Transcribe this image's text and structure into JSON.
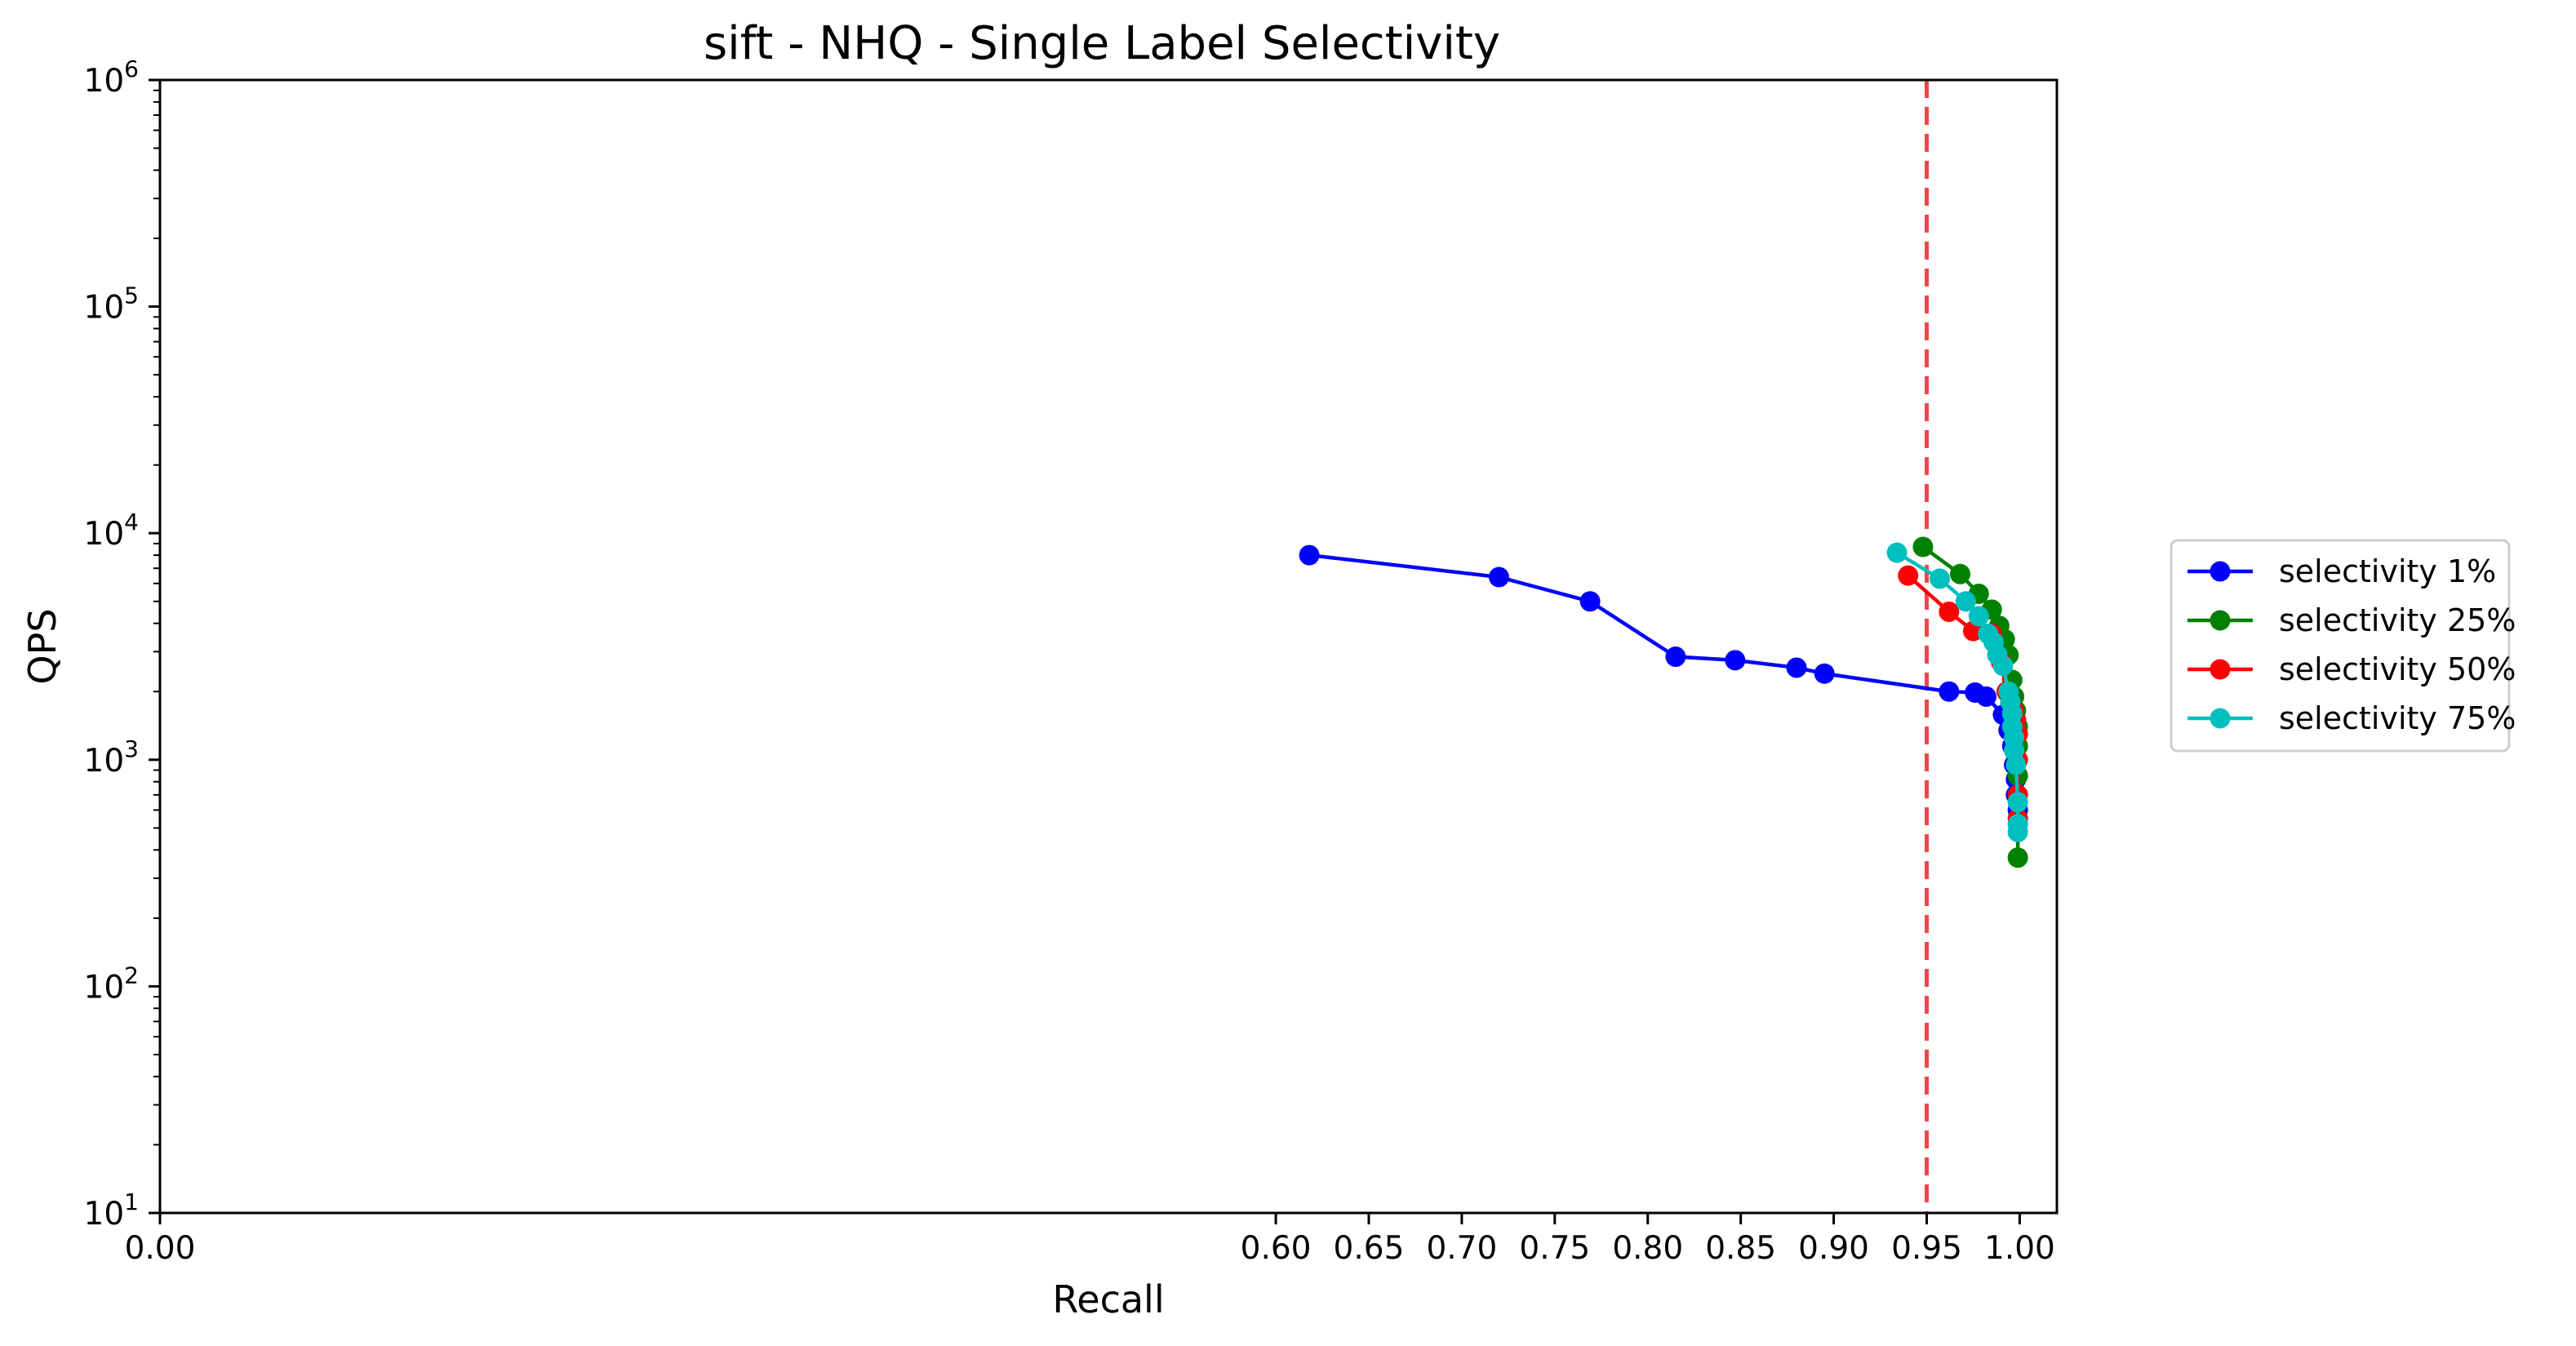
{
  "chart_data": {
    "type": "line",
    "title": "sift - NHQ - Single Label Selectivity",
    "xlabel": "Recall",
    "ylabel": "QPS",
    "xlim": [
      0.0,
      1.02
    ],
    "ylim": [
      10,
      1000000
    ],
    "y_scale": "log",
    "grid": false,
    "legend_position": "outside-right",
    "x_ticks": [
      "0.00",
      "0.60",
      "0.65",
      "0.70",
      "0.75",
      "0.80",
      "0.85",
      "0.90",
      "0.95",
      "1.00"
    ],
    "x_tick_values": [
      0.0,
      0.6,
      0.65,
      0.7,
      0.75,
      0.8,
      0.85,
      0.9,
      0.95,
      1.0
    ],
    "y_tick_values": [
      10,
      100,
      1000,
      10000,
      100000,
      1000000
    ],
    "y_ticks": [
      {
        "base": "10",
        "exp": "1"
      },
      {
        "base": "10",
        "exp": "2"
      },
      {
        "base": "10",
        "exp": "3"
      },
      {
        "base": "10",
        "exp": "4"
      },
      {
        "base": "10",
        "exp": "5"
      },
      {
        "base": "10",
        "exp": "6"
      }
    ],
    "reference_line": {
      "x": 0.95,
      "color": "#ee3333",
      "style": "dashed"
    },
    "series": [
      {
        "name": "selectivity 1%",
        "color": "#0000ff",
        "points": [
          [
            0.618,
            8000
          ],
          [
            0.72,
            6400
          ],
          [
            0.769,
            5000
          ],
          [
            0.815,
            2850
          ],
          [
            0.847,
            2750
          ],
          [
            0.88,
            2550
          ],
          [
            0.895,
            2400
          ],
          [
            0.962,
            2000
          ],
          [
            0.976,
            1980
          ],
          [
            0.982,
            1900
          ],
          [
            0.991,
            1580
          ],
          [
            0.994,
            1350
          ],
          [
            0.996,
            1150
          ],
          [
            0.997,
            950
          ],
          [
            0.998,
            820
          ],
          [
            0.998,
            700
          ],
          [
            0.999,
            600
          ]
        ]
      },
      {
        "name": "selectivity 25%",
        "color": "#008000",
        "points": [
          [
            0.948,
            8700
          ],
          [
            0.968,
            6600
          ],
          [
            0.978,
            5400
          ],
          [
            0.985,
            4600
          ],
          [
            0.989,
            3900
          ],
          [
            0.992,
            3400
          ],
          [
            0.994,
            2900
          ],
          [
            0.996,
            2250
          ],
          [
            0.997,
            1900
          ],
          [
            0.998,
            1650
          ],
          [
            0.999,
            1400
          ],
          [
            0.999,
            1150
          ],
          [
            0.999,
            850
          ],
          [
            0.999,
            370
          ]
        ]
      },
      {
        "name": "selectivity 50%",
        "color": "#ff0000",
        "points": [
          [
            0.94,
            6500
          ],
          [
            0.962,
            4500
          ],
          [
            0.975,
            3700
          ],
          [
            0.985,
            3600
          ],
          [
            0.99,
            2700
          ],
          [
            0.993,
            2000
          ],
          [
            0.995,
            1800
          ],
          [
            0.997,
            1650
          ],
          [
            0.998,
            1500
          ],
          [
            0.999,
            1300
          ],
          [
            0.999,
            1000
          ],
          [
            0.999,
            700
          ],
          [
            0.999,
            550
          ]
        ]
      },
      {
        "name": "selectivity 75%",
        "color": "#00bfbf",
        "points": [
          [
            0.934,
            8200
          ],
          [
            0.957,
            6300
          ],
          [
            0.971,
            5000
          ],
          [
            0.978,
            4300
          ],
          [
            0.983,
            3600
          ],
          [
            0.986,
            3300
          ],
          [
            0.988,
            2900
          ],
          [
            0.991,
            2600
          ],
          [
            0.994,
            2000
          ],
          [
            0.995,
            1800
          ],
          [
            0.996,
            1600
          ],
          [
            0.996,
            1400
          ],
          [
            0.997,
            1250
          ],
          [
            0.997,
            1100
          ],
          [
            0.998,
            950
          ],
          [
            0.999,
            650
          ],
          [
            0.999,
            520
          ],
          [
            0.999,
            480
          ]
        ]
      }
    ]
  }
}
